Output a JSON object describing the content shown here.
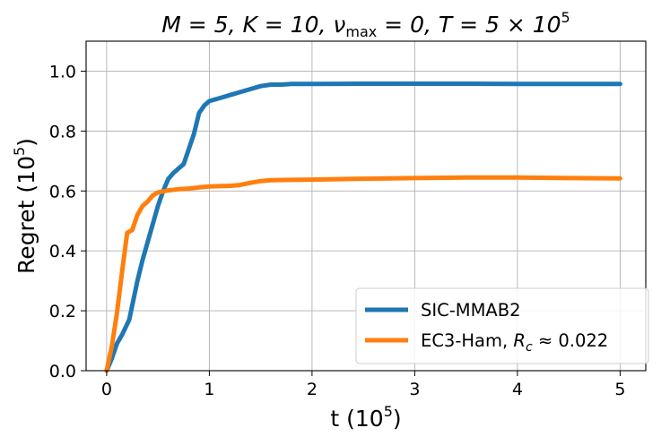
{
  "chart_data": {
    "type": "line",
    "title": "$M = 5, K = 10, \\nu_{\\max} = 0, T = 5 \\times 10^5$",
    "title_parts": {
      "pre": "M = 5, K = 10, ν",
      "sub": "max",
      "mid": " = 0, T = 5 × 10",
      "sup": "5"
    },
    "xlabel": "t (10^5)",
    "xlabel_parts": {
      "base": "t (10",
      "sup": "5",
      "end": ")"
    },
    "ylabel": "Regret (10^5)",
    "ylabel_parts": {
      "base": "Regret (10",
      "sup": "5",
      "end": ")"
    },
    "xlim": [
      -0.2,
      5.25
    ],
    "ylim": [
      0,
      1.1
    ],
    "xticks": [
      0,
      1,
      2,
      3,
      4,
      5
    ],
    "xtick_labels": [
      "0",
      "1",
      "2",
      "3",
      "4",
      "5"
    ],
    "yticks": [
      0.0,
      0.2,
      0.4,
      0.6,
      0.8,
      1.0
    ],
    "ytick_labels": [
      "0.0",
      "0.2",
      "0.4",
      "0.6",
      "0.8",
      "1.0"
    ],
    "grid": true,
    "legend_position": "lower-right",
    "series": [
      {
        "name": "SIC-MMAB2",
        "color": "#1f77b4",
        "x": [
          0,
          0.05,
          0.1,
          0.15,
          0.22,
          0.3,
          0.35,
          0.4,
          0.45,
          0.5,
          0.55,
          0.6,
          0.65,
          0.7,
          0.75,
          0.8,
          0.85,
          0.9,
          0.95,
          1.0,
          1.1,
          1.2,
          1.3,
          1.4,
          1.5,
          1.6,
          1.7,
          1.8,
          2.0,
          2.5,
          3.0,
          3.5,
          4.0,
          4.5,
          5.0
        ],
        "y": [
          0,
          0.04,
          0.09,
          0.12,
          0.17,
          0.3,
          0.37,
          0.43,
          0.49,
          0.55,
          0.6,
          0.64,
          0.66,
          0.675,
          0.69,
          0.74,
          0.79,
          0.86,
          0.885,
          0.9,
          0.91,
          0.92,
          0.93,
          0.94,
          0.95,
          0.955,
          0.955,
          0.957,
          0.957,
          0.958,
          0.958,
          0.958,
          0.957,
          0.957,
          0.957
        ]
      },
      {
        "name_parts": {
          "pre": "EC3-Ham, ",
          "R": "R",
          "sub": "c",
          "post": " ≈ 0.022"
        },
        "name": "EC3-Ham, R_c ≈ 0.022",
        "color": "#ff7f0e",
        "x": [
          0,
          0.05,
          0.1,
          0.15,
          0.2,
          0.25,
          0.3,
          0.35,
          0.4,
          0.45,
          0.5,
          0.6,
          0.7,
          0.8,
          0.9,
          1.0,
          1.1,
          1.2,
          1.3,
          1.4,
          1.5,
          1.6,
          1.8,
          2.0,
          2.5,
          3.0,
          3.5,
          4.0,
          4.5,
          5.0
        ],
        "y": [
          0,
          0.08,
          0.19,
          0.33,
          0.46,
          0.47,
          0.52,
          0.55,
          0.565,
          0.585,
          0.595,
          0.602,
          0.606,
          0.608,
          0.612,
          0.615,
          0.616,
          0.617,
          0.62,
          0.627,
          0.633,
          0.636,
          0.637,
          0.638,
          0.641,
          0.643,
          0.645,
          0.645,
          0.643,
          0.642
        ]
      }
    ]
  }
}
